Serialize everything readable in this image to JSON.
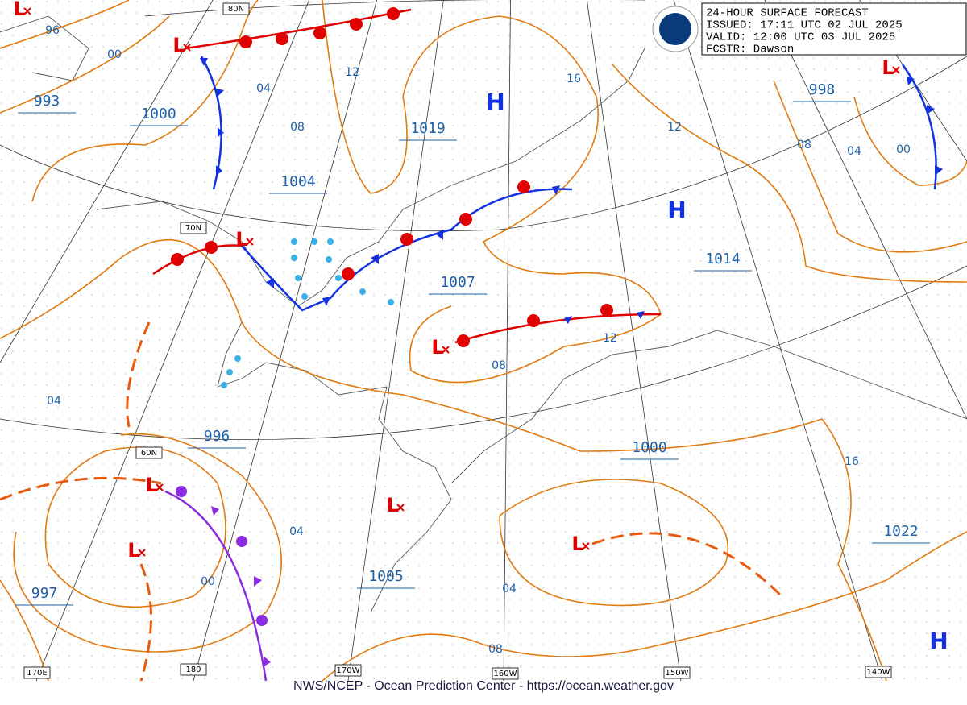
{
  "header": {
    "lines": [
      "24-HOUR SURFACE FORECAST",
      "ISSUED: 17:11 UTC 02 JUL 2025",
      "VALID:  12:00 UTC 03 JUL 2025",
      "FCSTR:  Dawson"
    ]
  },
  "pressure_labels": [
    "993",
    "1000",
    "1019",
    "1004",
    "998",
    "1014",
    "1007",
    "996",
    "1000",
    "1022",
    "997",
    "1005"
  ],
  "isobar_labels": [
    "96",
    "00",
    "04",
    "12",
    "08",
    "16",
    "12",
    "08",
    "04",
    "00",
    "12",
    "08",
    "04",
    "04",
    "00",
    "04",
    "08",
    "16"
  ],
  "grid_labels": [
    "80N",
    "70N",
    "60N",
    "170E",
    "180",
    "170W",
    "160W",
    "150W",
    "140W"
  ],
  "highs": [
    "H",
    "H",
    "H"
  ],
  "lows": [
    "L",
    "L",
    "L",
    "L",
    "L",
    "L",
    "L",
    "L",
    "L"
  ],
  "footer": "NWS/NCEP - Ocean Prediction Center - https://ocean.weather.gov"
}
